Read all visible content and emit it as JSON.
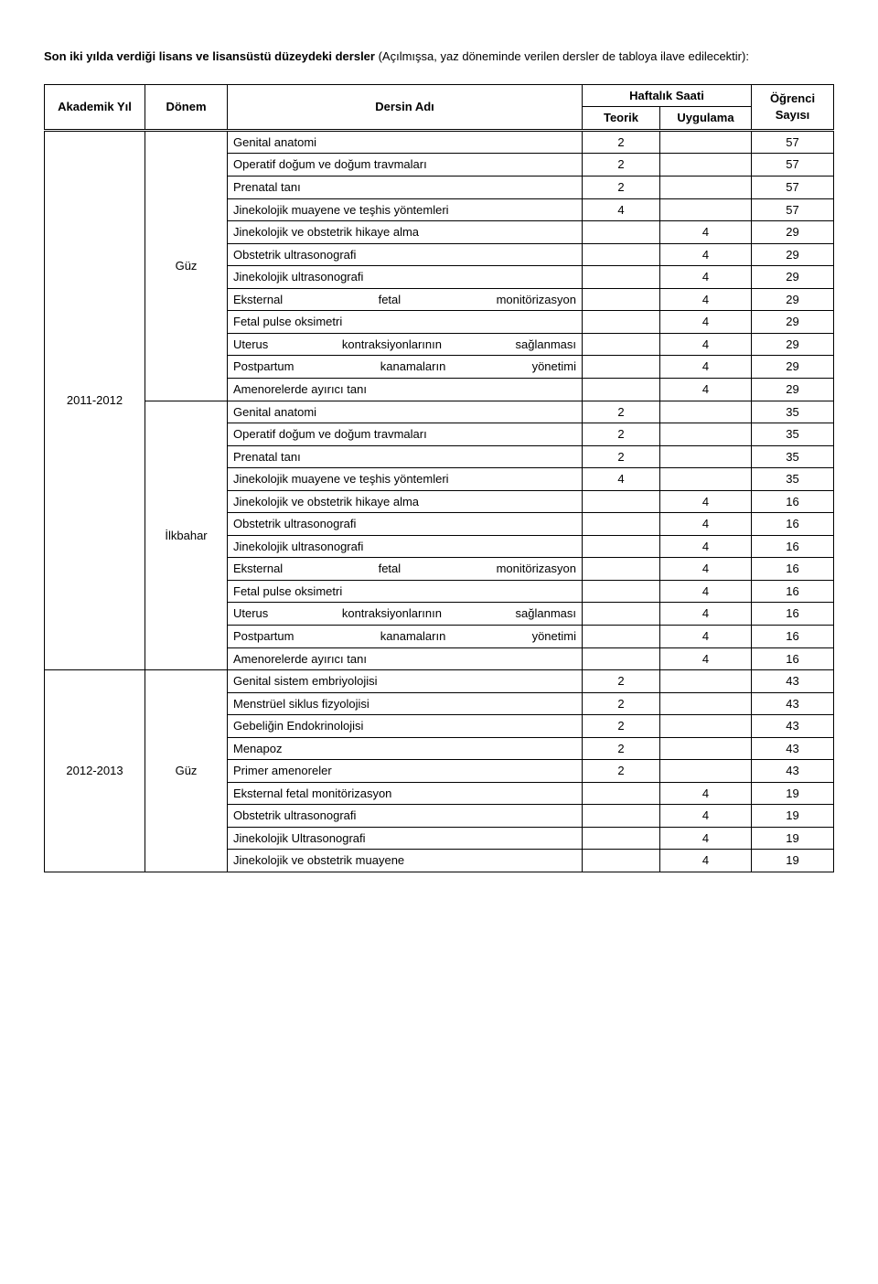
{
  "intro_bold": "Son iki yılda verdiği lisans ve lisansüstü düzeydeki dersler",
  "intro_rest": " (Açılmışsa, yaz döneminde verilen dersler de tabloya ilave edilecektir):",
  "headers": {
    "year": "Akademik Yıl",
    "term": "Dönem",
    "course": "Dersin Adı",
    "weekly": "Haftalık Saati",
    "teorik": "Teorik",
    "uygulama": "Uygulama",
    "count": "Öğrenci Sayısı"
  },
  "blocks": [
    {
      "year": "2011-2012",
      "terms": [
        {
          "term": "Güz",
          "rows": [
            {
              "c": "Genital anatomi",
              "t": "2",
              "u": "",
              "n": "57"
            },
            {
              "c": "Operatif doğum ve doğum travmaları",
              "t": "2",
              "u": "",
              "n": "57"
            },
            {
              "c": "Prenatal tanı",
              "t": "2",
              "u": "",
              "n": "57"
            },
            {
              "c": "Jinekolojik muayene ve teşhis yöntemleri",
              "t": "4",
              "u": "",
              "n": "57"
            },
            {
              "c": "Jinekolojik ve obstetrik hikaye alma",
              "t": "",
              "u": "4",
              "n": "29"
            },
            {
              "c": "Obstetrik ultrasonografi",
              "t": "",
              "u": "4",
              "n": "29"
            },
            {
              "c": "Jinekolojik ultrasonografi",
              "t": "",
              "u": "4",
              "n": "29"
            },
            {
              "c": "Eksternal fetal monitörizasyon",
              "t": "",
              "u": "4",
              "n": "29",
              "justify": true
            },
            {
              "c": "Fetal pulse oksimetri",
              "t": "",
              "u": "4",
              "n": "29"
            },
            {
              "c": "Uterus kontraksiyonlarının sağlanması",
              "t": "",
              "u": "4",
              "n": "29",
              "justify": true
            },
            {
              "c": "Postpartum kanamaların yönetimi",
              "t": "",
              "u": "4",
              "n": "29",
              "justify": true
            },
            {
              "c": "Amenorelerde ayırıcı tanı",
              "t": "",
              "u": "4",
              "n": "29"
            }
          ]
        },
        {
          "term": "İlkbahar",
          "rows": [
            {
              "c": "Genital anatomi",
              "t": "2",
              "u": "",
              "n": "35"
            },
            {
              "c": "Operatif doğum ve doğum travmaları",
              "t": "2",
              "u": "",
              "n": "35"
            },
            {
              "c": "Prenatal tanı",
              "t": "2",
              "u": "",
              "n": "35"
            },
            {
              "c": "Jinekolojik muayene ve teşhis yöntemleri",
              "t": "4",
              "u": "",
              "n": "35"
            },
            {
              "c": "Jinekolojik ve obstetrik hikaye alma",
              "t": "",
              "u": "4",
              "n": "16"
            },
            {
              "c": "Obstetrik ultrasonografi",
              "t": "",
              "u": "4",
              "n": "16"
            },
            {
              "c": "Jinekolojik ultrasonografi",
              "t": "",
              "u": "4",
              "n": "16"
            },
            {
              "c": "Eksternal fetal monitörizasyon",
              "t": "",
              "u": "4",
              "n": "16",
              "justify": true
            },
            {
              "c": "Fetal pulse oksimetri",
              "t": "",
              "u": "4",
              "n": "16"
            },
            {
              "c": "Uterus kontraksiyonlarının sağlanması",
              "t": "",
              "u": "4",
              "n": "16",
              "justify": true
            },
            {
              "c": "Postpartum kanamaların yönetimi",
              "t": "",
              "u": "4",
              "n": "16",
              "justify": true
            },
            {
              "c": "Amenorelerde ayırıcı tanı",
              "t": "",
              "u": "4",
              "n": "16"
            }
          ]
        }
      ]
    },
    {
      "year": "2012-2013",
      "terms": [
        {
          "term": "Güz",
          "rows": [
            {
              "c": "Genital sistem embriyolojisi",
              "t": "2",
              "u": "",
              "n": "43"
            },
            {
              "c": "Menstrüel siklus fizyolojisi",
              "t": "2",
              "u": "",
              "n": "43"
            },
            {
              "c": "Gebeliğin Endokrinolojisi",
              "t": "2",
              "u": "",
              "n": "43"
            },
            {
              "c": "Menapoz",
              "t": "2",
              "u": "",
              "n": "43"
            },
            {
              "c": "Primer amenoreler",
              "t": "2",
              "u": "",
              "n": "43"
            },
            {
              "c": "Eksternal fetal monitörizasyon",
              "t": "",
              "u": "4",
              "n": "19"
            },
            {
              "c": "Obstetrik ultrasonografi",
              "t": "",
              "u": "4",
              "n": "19"
            },
            {
              "c": "Jinekolojik Ultrasonografi",
              "t": "",
              "u": "4",
              "n": "19"
            },
            {
              "c": "Jinekolojik ve obstetrik muayene",
              "t": "",
              "u": "4",
              "n": "19"
            }
          ]
        }
      ]
    }
  ]
}
